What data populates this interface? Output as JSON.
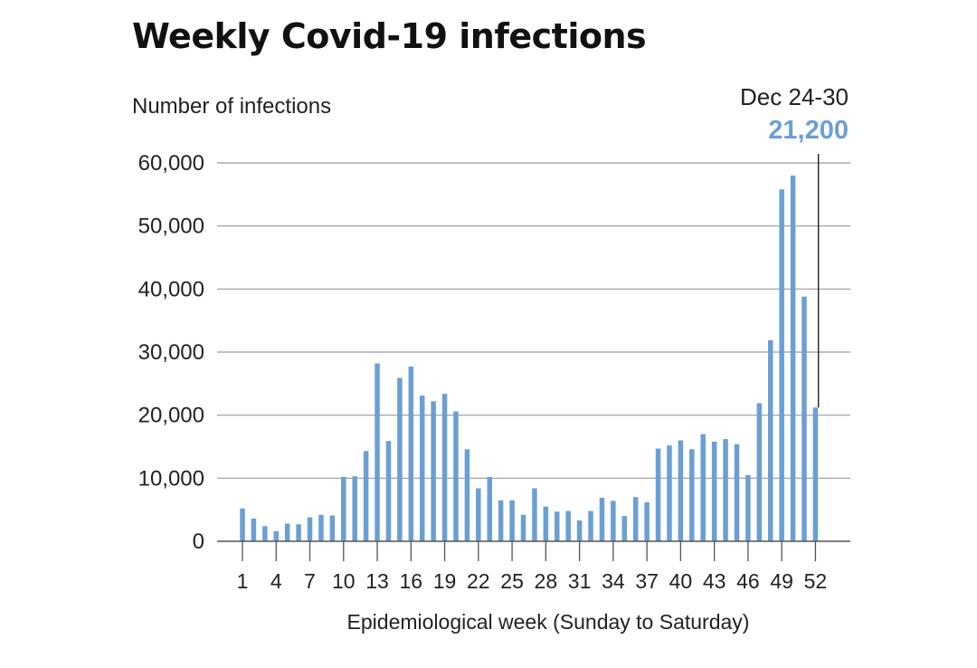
{
  "chart_data": {
    "type": "bar",
    "title": "Weekly Covid-19 infections",
    "ylabel": "Number of infections",
    "xlabel": "Epidemiological week (Sunday to Saturday)",
    "ylim": [
      0,
      60000
    ],
    "yticks": [
      0,
      10000,
      20000,
      30000,
      40000,
      50000,
      60000
    ],
    "ytick_labels": [
      "0",
      "10,000",
      "20,000",
      "30,000",
      "40,000",
      "50,000",
      "60,000"
    ],
    "xticks": [
      1,
      4,
      7,
      10,
      13,
      16,
      19,
      22,
      25,
      28,
      31,
      34,
      37,
      40,
      43,
      46,
      49,
      52
    ],
    "grid": "horizontal",
    "bar_color": "#6b9fd4",
    "categories": [
      1,
      2,
      3,
      4,
      5,
      6,
      7,
      8,
      9,
      10,
      11,
      12,
      13,
      14,
      15,
      16,
      17,
      18,
      19,
      20,
      21,
      22,
      23,
      24,
      25,
      26,
      27,
      28,
      29,
      30,
      31,
      32,
      33,
      34,
      35,
      36,
      37,
      38,
      39,
      40,
      41,
      42,
      43,
      44,
      45,
      46,
      47,
      48,
      49,
      50,
      51,
      52
    ],
    "values": [
      5200,
      3600,
      2400,
      1600,
      2800,
      2700,
      3800,
      4200,
      4100,
      10200,
      10300,
      14300,
      28200,
      15900,
      25900,
      27700,
      23100,
      22200,
      23400,
      20600,
      14600,
      8400,
      10200,
      6500,
      6500,
      4200,
      8400,
      5500,
      4700,
      4800,
      3300,
      4800,
      6900,
      6400,
      4000,
      7000,
      6200,
      14700,
      15200,
      16000,
      14600,
      17000,
      15800,
      16200,
      15400,
      10500,
      21900,
      31900,
      55800,
      58000,
      38800,
      21200
    ],
    "annotation": {
      "week": 52,
      "label": "Dec 24-30",
      "value_label": "21,200"
    }
  }
}
